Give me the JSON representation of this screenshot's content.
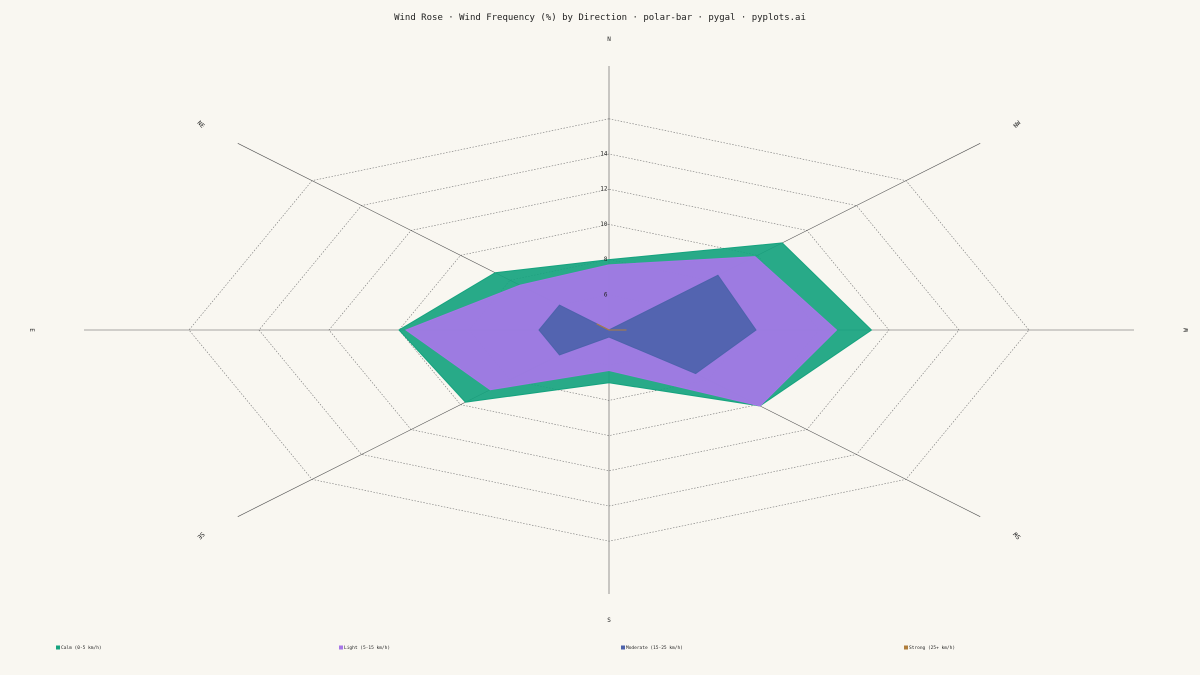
{
  "chart_data": {
    "type": "area",
    "title": "Wind Rose · Wind Frequency (%) by Direction · polar-bar · pygal · pyplots.ai",
    "directions": [
      "N",
      "NE",
      "E",
      "SE",
      "S",
      "SW",
      "W",
      "NW"
    ],
    "radial_ticks": [
      "6",
      "8",
      "10",
      "12",
      "14"
    ],
    "radial_range": [
      6,
      14
    ],
    "legend_position": "bottom",
    "series": [
      {
        "name": "Calm (0-5 km/h)",
        "color": "#16a37f",
        "values": [
          8.0,
          8.6,
          10.0,
          9.8,
          7.0,
          10.1,
          11.5,
          11.0
        ]
      },
      {
        "name": "Light (5-15 km/h)",
        "color": "#a777e8",
        "values": [
          7.7,
          7.6,
          9.8,
          8.8,
          6.3,
          10.1,
          10.5,
          9.9
        ]
      },
      {
        "name": "Moderate (15-25 km/h)",
        "color": "#4d62ab",
        "values": [
          4.0,
          6.0,
          6.0,
          6.0,
          4.4,
          7.5,
          8.2,
          8.4
        ]
      },
      {
        "name": "Strong (25+ km/h)",
        "color": "#b07e3c",
        "values": [
          1.0,
          4.5,
          4.0,
          3.0,
          2.0,
          3.0,
          4.5,
          3.5
        ]
      }
    ]
  }
}
